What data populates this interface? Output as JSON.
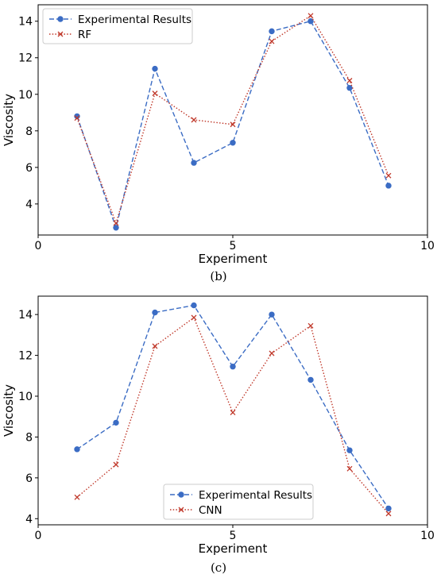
{
  "chart_data": [
    {
      "type": "line",
      "xlabel": "Experiment",
      "ylabel": "Viscosity",
      "xlim": [
        0,
        10
      ],
      "ylim": [
        2.3,
        14.9
      ],
      "xticks": [
        0,
        5,
        10
      ],
      "yticks": [
        4,
        6,
        8,
        10,
        12,
        14
      ],
      "grid": false,
      "legend_loc": "upper left",
      "caption": "(b)",
      "series": [
        {
          "name": "Experimental Results",
          "color": "#3b6cc4",
          "linestyle": "dashed",
          "marker": "circle",
          "x": [
            1,
            2,
            3,
            4,
            5,
            6,
            7,
            8,
            9
          ],
          "y": [
            8.8,
            2.7,
            11.4,
            6.25,
            7.35,
            13.45,
            14.0,
            10.35,
            5.0
          ]
        },
        {
          "name": "RF",
          "color": "#c0392b",
          "linestyle": "dotted",
          "marker": "x",
          "x": [
            1,
            2,
            3,
            4,
            5,
            6,
            7,
            8,
            9
          ],
          "y": [
            8.7,
            2.95,
            10.05,
            8.6,
            8.35,
            12.9,
            14.3,
            10.75,
            5.55
          ]
        }
      ]
    },
    {
      "type": "line",
      "xlabel": "Experiment",
      "ylabel": "Viscosity",
      "xlim": [
        0,
        10
      ],
      "ylim": [
        3.7,
        14.9
      ],
      "xticks": [
        0,
        5,
        10
      ],
      "yticks": [
        4,
        6,
        8,
        10,
        12,
        14
      ],
      "grid": false,
      "legend_loc": "lower center",
      "caption": "(c)",
      "series": [
        {
          "name": "Experimental Results",
          "color": "#3b6cc4",
          "linestyle": "dashed",
          "marker": "circle",
          "x": [
            1,
            2,
            3,
            4,
            5,
            6,
            7,
            8,
            9
          ],
          "y": [
            7.4,
            8.7,
            14.1,
            14.45,
            11.45,
            14.0,
            10.8,
            7.35,
            4.5
          ]
        },
        {
          "name": "CNN",
          "color": "#c0392b",
          "linestyle": "dotted",
          "marker": "x",
          "x": [
            1,
            2,
            3,
            4,
            5,
            6,
            7,
            8,
            9
          ],
          "y": [
            5.05,
            6.65,
            12.45,
            13.85,
            9.2,
            12.1,
            13.45,
            6.45,
            4.25
          ]
        }
      ]
    }
  ],
  "captions": {
    "b": "(b)",
    "c": "(c)"
  }
}
